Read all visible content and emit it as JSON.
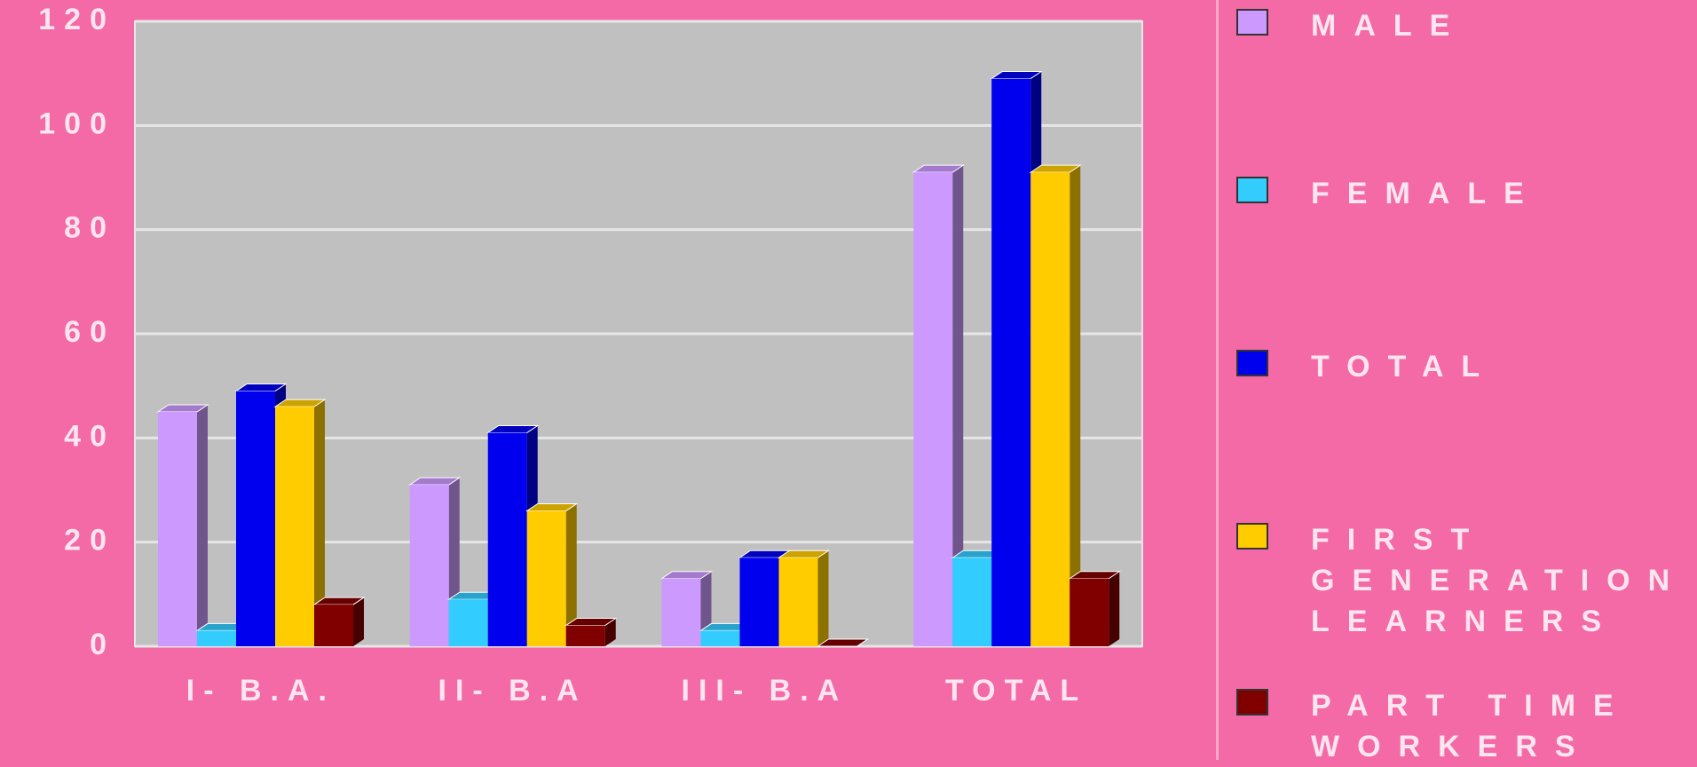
{
  "chart_data": {
    "type": "bar3d",
    "categories": [
      "I- B.A.",
      "II- B.A",
      "III- B.A",
      "TOTAL"
    ],
    "series": [
      {
        "name": "MALE",
        "color": "#cc99ff",
        "values": [
          45,
          31,
          13,
          91
        ]
      },
      {
        "name": "FEMALE",
        "color": "#33ccff",
        "values": [
          3,
          9,
          3,
          17
        ]
      },
      {
        "name": "TOTAL",
        "color": "#0000ee",
        "values": [
          49,
          41,
          17,
          109
        ]
      },
      {
        "name": "FIRST GENERATION LEARNERS",
        "color": "#ffcc00",
        "values": [
          46,
          26,
          17,
          91
        ]
      },
      {
        "name": "PART TIME WORKERS",
        "color": "#800000",
        "values": [
          8,
          4,
          0,
          13
        ]
      }
    ],
    "ylim": [
      0,
      120
    ],
    "yticks": [
      0,
      20,
      40,
      60,
      80,
      100,
      120
    ],
    "grid": true,
    "legend": "right"
  }
}
